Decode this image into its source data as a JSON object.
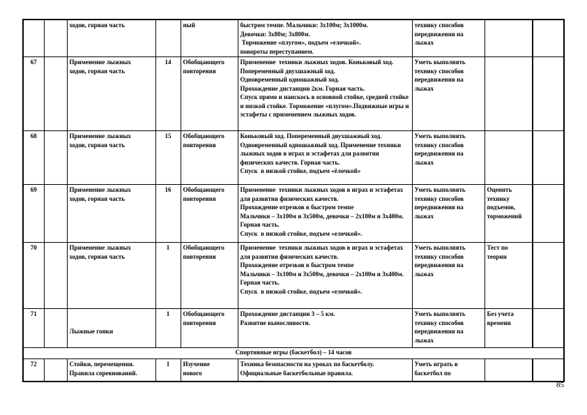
{
  "page": {
    "number": "85"
  },
  "table": {
    "rows": [
      {
        "num": "",
        "date": "",
        "topic": "ходов, горная часть",
        "hours": "",
        "type": "ный",
        "content": "быстром темпе. Мальчики: 3х100м; 3х1000м.\nДевочки: 3х80м; 3х800м.\n Торможение «плугом», подъем «елочкой».\nповороты переступанием.",
        "skills": "технику способов\nпередвижения на\nлыжах",
        "assess": "",
        "notes": ""
      },
      {
        "num": "67",
        "date": "",
        "topic": "Применение лыжных\nходов, горная часть",
        "hours": "14",
        "type": "Обобщающего\nповторения",
        "content": "Применение  техники лыжных ходов. Коньковый ход. Попеременный двухшажный ход.\nОдновременный одношажный ход.\nПрохождение дистанции 2км. Горная часть.\nСпуск прямо и наискось в основной стойке, средней стойке и низкой стойке. Торможение «плугом».Подвижные игры и эстафеты с применением лыжных ходов.",
        "skills": "Уметь выполнять\nтехнику способов\nпередвижения на\nлыжах",
        "assess": "",
        "notes": ""
      },
      {
        "num": "68",
        "date": "",
        "topic": "Применение лыжных\nходов, горная часть",
        "hours": "15",
        "type": "Обобщающего\nповторения",
        "content": "Коньковый ход. Попеременный двухшажный ход.\nОдновременный одношажный ход. Применение техники лыжных ходов в играх и эстафетах для развития физических качеств. Горная часть.\nСпуск  в низкой стойке, подъем «ёлочкой»",
        "skills": "Уметь выполнять\nтехнику способов\nпередвижения на\nлыжах",
        "assess": "",
        "notes": ""
      },
      {
        "num": "69",
        "date": "",
        "topic": "Применение лыжных\nходов, горная часть",
        "hours": "16",
        "type": "Обобщающего\nповторения",
        "content": "Применение  техники лыжных ходов в играх и эстафетах для развития физических качеств.\nПрохождение отрезков в быстром темпе\nМальчики – 3х100м и 3х500м, девочки – 2х100м и 3х400м.   Горная часть.\nСпуск  в низкой стойке, подъем «елочкой».",
        "skills": "Уметь выполнять\nтехнику способов\nпередвижения на\nлыжах",
        "assess": "Оценить\nтехнику\nподъемов,\nторможений",
        "notes": ""
      },
      {
        "num": "70",
        "date": "",
        "topic": "Применение лыжных\nходов, горная часть",
        "hours": "1",
        "type": "Обобщающего\nповторения",
        "content": "Применение  техники лыжных ходов в играх и эстафетах для развития физических качеств.\nПрохождение отрезков в быстром темпе\nМальчики – 3х100м и 3х500м, девочки – 2х100м и 3х400м.   Горная часть.\nСпуск  в низкой стойке, подъем «елочкой».",
        "skills": "Уметь выполнять\nтехнику способов\nпередвижения на\nлыжах",
        "assess": "Тест по\nтеории",
        "notes": ""
      },
      {
        "num": "71",
        "date": "",
        "topic": "\n\nЛыжные гонки",
        "hours": "1",
        "type": "Обобщающего\nповторения",
        "content": "Прохождение дистанции 3 – 5 км.\nРазвитие выносливости.",
        "skills": "Уметь выполнять\nтехнику способов\nпередвижения на\nлыжах",
        "assess": "Без учета\nвремени",
        "notes": ""
      },
      {
        "section": "Спортивные игры (баскетбол) –  14 часов"
      },
      {
        "num": "72",
        "date": "",
        "topic": "Стойки, перемещения.\nПравила соревнований.",
        "hours": "1",
        "type": "Изучение\nнового",
        "content": "Техника безопасности на уроках по баскетболу.\nОфициальные баскетбольные правила.",
        "skills": "Уметь играть в\nбаскетбол по",
        "assess": "",
        "notes": ""
      }
    ]
  }
}
